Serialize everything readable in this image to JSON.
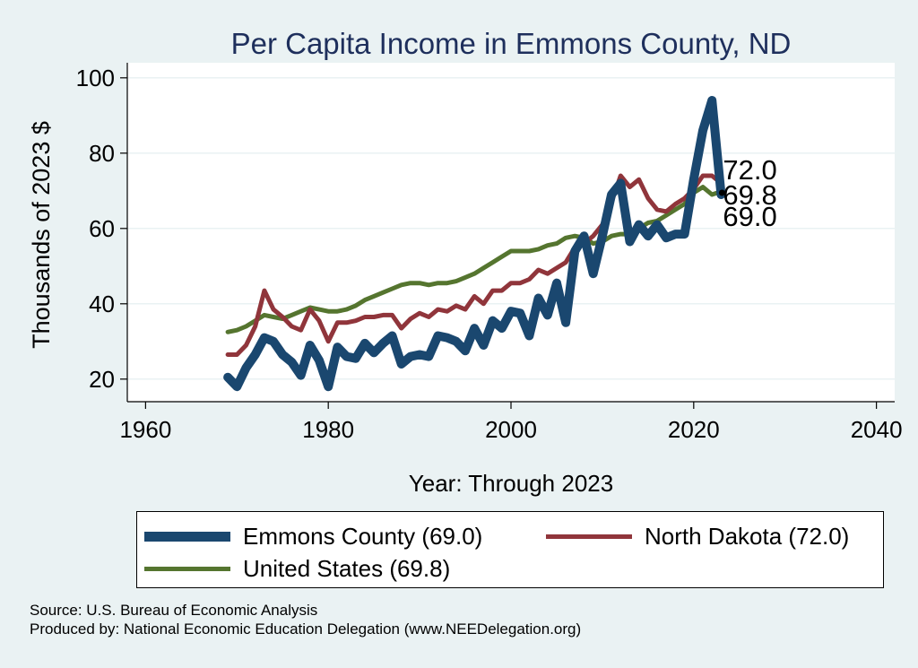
{
  "chart_data": {
    "type": "line",
    "title": "Per Capita Income in Emmons County, ND",
    "xlabel": "Year: Through 2023",
    "ylabel": "Thousands of 2023 $",
    "xlim": [
      1958,
      2042
    ],
    "ylim": [
      14,
      104
    ],
    "xticks": [
      1960,
      1980,
      2000,
      2020,
      2040
    ],
    "yticks": [
      20,
      40,
      60,
      80,
      100
    ],
    "grid": true,
    "x": [
      1969,
      1970,
      1971,
      1972,
      1973,
      1974,
      1975,
      1976,
      1977,
      1978,
      1979,
      1980,
      1981,
      1982,
      1983,
      1984,
      1985,
      1986,
      1987,
      1988,
      1989,
      1990,
      1991,
      1992,
      1993,
      1994,
      1995,
      1996,
      1997,
      1998,
      1999,
      2000,
      2001,
      2002,
      2003,
      2004,
      2005,
      2006,
      2007,
      2008,
      2009,
      2010,
      2011,
      2012,
      2013,
      2014,
      2015,
      2016,
      2017,
      2018,
      2019,
      2020,
      2021,
      2022,
      2023
    ],
    "series": [
      {
        "name": "Emmons County",
        "color": "#1a476f",
        "last_value": "69.0",
        "values": [
          20.5,
          18.0,
          23.0,
          26.5,
          31.0,
          30.0,
          26.5,
          24.5,
          21.0,
          29.0,
          25.0,
          18.0,
          28.5,
          26.0,
          25.5,
          29.5,
          27.0,
          29.5,
          31.5,
          24.0,
          26.0,
          26.5,
          26.0,
          31.5,
          31.0,
          30.0,
          27.5,
          33.5,
          29.0,
          35.5,
          33.5,
          38.0,
          37.5,
          31.5,
          41.5,
          37.0,
          45.5,
          35.0,
          54.0,
          58.0,
          48.0,
          58.0,
          69.0,
          72.0,
          56.5,
          61.0,
          58.0,
          61.0,
          57.5,
          58.5,
          58.5,
          73.0,
          86.0,
          94.0,
          69.0
        ]
      },
      {
        "name": "North Dakota",
        "color": "#90353b",
        "last_value": "72.0",
        "values": [
          26.5,
          26.5,
          29.0,
          34.0,
          43.5,
          38.5,
          36.5,
          34.0,
          33.0,
          38.5,
          35.5,
          30.0,
          35.0,
          35.0,
          35.5,
          36.5,
          36.5,
          37.0,
          37.0,
          33.5,
          36.0,
          37.5,
          36.5,
          38.5,
          38.0,
          39.5,
          38.5,
          42.0,
          40.0,
          43.5,
          43.5,
          45.5,
          45.5,
          46.5,
          49.0,
          48.0,
          49.5,
          51.0,
          55.0,
          56.0,
          58.0,
          61.0,
          67.0,
          74.0,
          71.0,
          73.0,
          68.0,
          65.0,
          64.5,
          66.5,
          68.0,
          70.5,
          74.0,
          74.0,
          72.0
        ]
      },
      {
        "name": "United States",
        "color": "#55752f",
        "last_value": "69.8",
        "values": [
          32.5,
          33.0,
          34.0,
          35.5,
          37.0,
          36.5,
          36.0,
          37.0,
          38.0,
          39.0,
          38.5,
          38.0,
          38.0,
          38.5,
          39.5,
          41.0,
          42.0,
          43.0,
          44.0,
          45.0,
          45.5,
          45.5,
          45.0,
          45.5,
          45.5,
          46.0,
          47.0,
          48.0,
          49.5,
          51.0,
          52.5,
          54.0,
          54.0,
          54.0,
          54.5,
          55.5,
          56.0,
          57.5,
          58.0,
          57.5,
          56.0,
          56.5,
          58.0,
          58.5,
          58.5,
          60.0,
          61.5,
          62.0,
          63.5,
          65.0,
          66.5,
          69.5,
          71.0,
          69.0,
          69.8
        ]
      }
    ],
    "end_labels": [
      "72.0",
      "69.8",
      "69.0"
    ]
  },
  "legend": {
    "items": [
      {
        "label": "Emmons County (69.0)",
        "color": "#1a476f"
      },
      {
        "label": "North Dakota (72.0)",
        "color": "#90353b"
      },
      {
        "label": "United States (69.8)",
        "color": "#55752f"
      }
    ]
  },
  "source": {
    "line1": "Source: U.S. Bureau of Economic Analysis",
    "line2": "Produced by: National Economic Education Delegation (www.NEEDelegation.org)"
  }
}
